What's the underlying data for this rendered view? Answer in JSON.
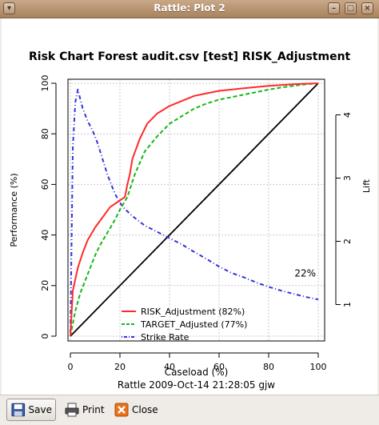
{
  "window": {
    "title": "Rattle: Plot 2"
  },
  "toolbar": {
    "save_label": "Save",
    "print_label": "Print",
    "close_label": "Close"
  },
  "chart_data": {
    "type": "line",
    "title": "Risk Chart Forest audit.csv [test] RISK_Adjustment",
    "xlabel": "Caseload (%)",
    "ylabel": "Performance (%)",
    "y2label": "Lift",
    "subtitle": "Rattle 2009-Oct-14 21:28:05 gjw",
    "xlim": [
      0,
      100
    ],
    "ylim": [
      0,
      100
    ],
    "y2lim": [
      0.5,
      4.5
    ],
    "xticks": [
      0,
      20,
      40,
      60,
      80,
      100
    ],
    "yticks": [
      0,
      20,
      40,
      60,
      80,
      100
    ],
    "y2ticks": [
      1,
      2,
      3,
      4
    ],
    "grid": true,
    "legend_position": "bottom-right",
    "annotation": {
      "text": "22%",
      "x": 100,
      "y": 22
    },
    "series": [
      {
        "name": "RISK_Adjustment (82%)",
        "color": "#ff2a2a",
        "style": "solid",
        "axis": "left",
        "x": [
          0,
          1,
          3,
          5,
          7,
          10,
          13,
          16,
          19,
          22,
          23,
          24,
          25,
          28,
          31,
          35,
          40,
          45,
          50,
          55,
          60,
          65,
          70,
          75,
          80,
          85,
          90,
          95,
          100
        ],
        "y": [
          0,
          18,
          27,
          33,
          38,
          43,
          47,
          51,
          53,
          55,
          60,
          64,
          70,
          78,
          84,
          88,
          91,
          93,
          95,
          96,
          97,
          97.5,
          98,
          98.5,
          99,
          99.3,
          99.6,
          99.8,
          100
        ]
      },
      {
        "name": "TARGET_Adjusted (77%)",
        "color": "#17b617",
        "style": "dashed",
        "axis": "left",
        "x": [
          0,
          2,
          4,
          6,
          8,
          10,
          12,
          15,
          18,
          20,
          23,
          26,
          30,
          35,
          40,
          45,
          50,
          55,
          60,
          65,
          70,
          75,
          80,
          85,
          90,
          95,
          100
        ],
        "y": [
          0,
          10,
          17,
          22,
          27,
          32,
          36,
          41,
          46,
          50,
          55,
          64,
          73,
          79,
          84,
          87,
          90,
          92,
          93.5,
          94.5,
          95.5,
          96.5,
          97.5,
          98.3,
          99,
          99.6,
          100
        ]
      },
      {
        "name": "Strike Rate",
        "color": "#3333dd",
        "style": "dash-dot",
        "axis": "right",
        "x": [
          0,
          1,
          2,
          3,
          4,
          5,
          7,
          9,
          11,
          13,
          15,
          18,
          21,
          25,
          30,
          35,
          40,
          45,
          50,
          55,
          60,
          65,
          70,
          75,
          80,
          85,
          90,
          95,
          100
        ],
        "y": [
          0.5,
          3.5,
          4.2,
          4.4,
          4.25,
          4.1,
          3.9,
          3.75,
          3.55,
          3.3,
          3.05,
          2.75,
          2.55,
          2.4,
          2.25,
          2.15,
          2.05,
          1.95,
          1.83,
          1.72,
          1.6,
          1.5,
          1.43,
          1.35,
          1.28,
          1.22,
          1.17,
          1.12,
          1.08
        ]
      },
      {
        "name": "",
        "color": "#000000",
        "style": "solid",
        "axis": "left",
        "x": [
          0,
          100
        ],
        "y": [
          0,
          100
        ]
      }
    ]
  }
}
